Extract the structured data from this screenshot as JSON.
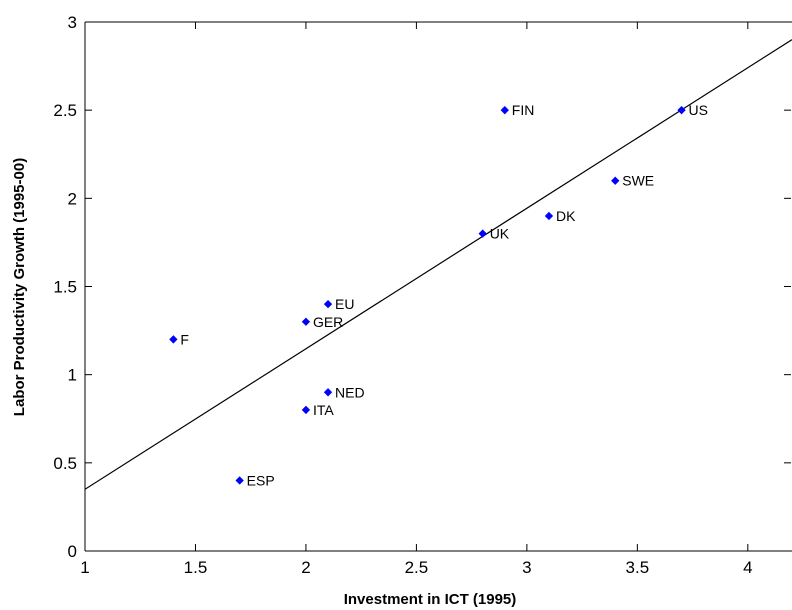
{
  "chart_data": {
    "type": "scatter",
    "xlabel": "Investment in ICT (1995)",
    "ylabel": "Labor Productivity Growth (1995-00)",
    "xlim": [
      1,
      4.2
    ],
    "ylim": [
      0,
      3
    ],
    "x_ticks": [
      "1",
      "1.5",
      "2",
      "2.5",
      "3",
      "3.5",
      "4"
    ],
    "y_ticks": [
      "0",
      "0.5",
      "1",
      "1.5",
      "2",
      "2.5",
      "3"
    ],
    "grid": false,
    "marker_color": "#0000ff",
    "line_color": "#000000",
    "points": [
      {
        "label": "F",
        "x": 1.4,
        "y": 1.2
      },
      {
        "label": "ESP",
        "x": 1.7,
        "y": 0.4
      },
      {
        "label": "GER",
        "x": 2.0,
        "y": 1.3
      },
      {
        "label": "ITA",
        "x": 2.0,
        "y": 0.8
      },
      {
        "label": "EU",
        "x": 2.1,
        "y": 1.4
      },
      {
        "label": "NED",
        "x": 2.1,
        "y": 0.9
      },
      {
        "label": "UK",
        "x": 2.8,
        "y": 1.8
      },
      {
        "label": "FIN",
        "x": 2.9,
        "y": 2.5
      },
      {
        "label": "DK",
        "x": 3.1,
        "y": 1.9
      },
      {
        "label": "SWE",
        "x": 3.4,
        "y": 2.1
      },
      {
        "label": "US",
        "x": 3.7,
        "y": 2.5
      }
    ],
    "fit_line": {
      "x": [
        1,
        4.2
      ],
      "y": [
        0.35,
        2.9
      ]
    }
  }
}
